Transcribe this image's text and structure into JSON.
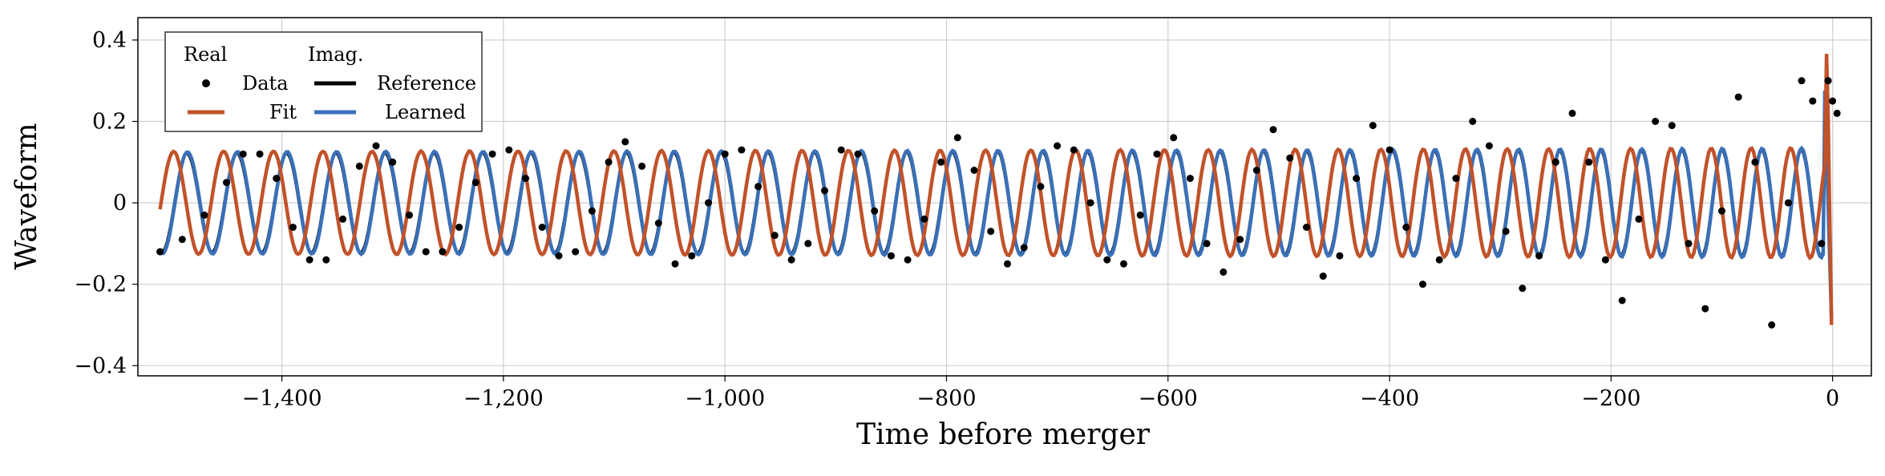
{
  "chart_data": {
    "type": "line",
    "title": "",
    "xlabel": "Time before merger",
    "ylabel": "Waveform",
    "xlim": [
      -1530,
      35
    ],
    "ylim": [
      -0.425,
      0.455
    ],
    "xticks": [
      -1400,
      -1200,
      -1000,
      -800,
      -600,
      -400,
      -200,
      0
    ],
    "xtick_labels": [
      "−1,400",
      "−1,200",
      "−1,000",
      "−800",
      "−600",
      "−400",
      "−200",
      "0"
    ],
    "yticks": [
      -0.4,
      -0.2,
      0,
      0.2,
      0.4
    ],
    "ytick_labels": [
      "−0.4",
      "−0.2",
      "0",
      "0.2",
      "0.4"
    ],
    "grid": true,
    "legend": {
      "placement": "top-left",
      "column_headers": [
        "Real",
        "Imag."
      ],
      "entries": [
        {
          "label": "Data",
          "series": "data",
          "style": "dots"
        },
        {
          "label": "Fit",
          "series": "fit",
          "style": "line"
        },
        {
          "label": "Reference",
          "series": "reference",
          "style": "line"
        },
        {
          "label": "Learned",
          "series": "learned",
          "style": "line"
        }
      ]
    },
    "colors": {
      "data": "#000000",
      "fit": "#c1522a",
      "reference": "#000000",
      "learned": "#3a70b8"
    },
    "series": [
      {
        "name": "Data",
        "kind": "real",
        "x": [
          -1510,
          -1490,
          -1470,
          -1450,
          -1435,
          -1420,
          -1405,
          -1390,
          -1375,
          -1360,
          -1345,
          -1330,
          -1315,
          -1300,
          -1285,
          -1270,
          -1255,
          -1240,
          -1225,
          -1210,
          -1195,
          -1180,
          -1165,
          -1150,
          -1135,
          -1120,
          -1105,
          -1090,
          -1075,
          -1060,
          -1045,
          -1030,
          -1015,
          -1000,
          -985,
          -970,
          -955,
          -940,
          -925,
          -910,
          -895,
          -880,
          -865,
          -850,
          -835,
          -820,
          -805,
          -790,
          -775,
          -760,
          -745,
          -730,
          -715,
          -700,
          -685,
          -670,
          -655,
          -640,
          -625,
          -610,
          -595,
          -580,
          -565,
          -550,
          -535,
          -520,
          -505,
          -490,
          -475,
          -460,
          -445,
          -430,
          -415,
          -400,
          -385,
          -370,
          -355,
          -340,
          -325,
          -310,
          -295,
          -280,
          -265,
          -250,
          -235,
          -220,
          -205,
          -190,
          -175,
          -160,
          -145,
          -130,
          -115,
          -100,
          -85,
          -70,
          -55,
          -40,
          -28,
          -18,
          -10,
          -4,
          0,
          4
        ],
        "y": [
          -0.12,
          -0.09,
          -0.03,
          0.05,
          0.12,
          0.12,
          0.06,
          -0.06,
          -0.14,
          -0.14,
          -0.04,
          0.09,
          0.14,
          0.1,
          -0.03,
          -0.12,
          -0.12,
          -0.06,
          0.05,
          0.12,
          0.13,
          0.06,
          -0.06,
          -0.13,
          -0.12,
          -0.02,
          0.1,
          0.15,
          0.09,
          -0.05,
          -0.15,
          -0.13,
          0.0,
          0.12,
          0.13,
          0.04,
          -0.08,
          -0.14,
          -0.1,
          0.03,
          0.13,
          0.12,
          -0.02,
          -0.13,
          -0.14,
          -0.04,
          0.1,
          0.16,
          0.08,
          -0.07,
          -0.15,
          -0.11,
          0.04,
          0.14,
          0.13,
          0.0,
          -0.14,
          -0.15,
          -0.03,
          0.12,
          0.16,
          0.06,
          -0.1,
          -0.17,
          -0.09,
          0.08,
          0.18,
          0.11,
          -0.06,
          -0.18,
          -0.13,
          0.06,
          0.19,
          0.13,
          -0.06,
          -0.2,
          -0.14,
          0.06,
          0.2,
          0.14,
          -0.07,
          -0.21,
          -0.13,
          0.1,
          0.22,
          0.1,
          -0.14,
          -0.24,
          -0.04,
          0.2,
          0.19,
          -0.1,
          -0.26,
          -0.02,
          0.26,
          0.1,
          -0.3,
          0.0,
          0.3,
          0.25,
          -0.1,
          0.3,
          0.25,
          0.22
        ]
      },
      {
        "name": "Fit",
        "kind": "real",
        "x": [],
        "y": []
      },
      {
        "name": "Reference",
        "kind": "imag",
        "x": [],
        "y": []
      },
      {
        "name": "Learned",
        "kind": "imag",
        "x": [],
        "y": []
      }
    ]
  }
}
